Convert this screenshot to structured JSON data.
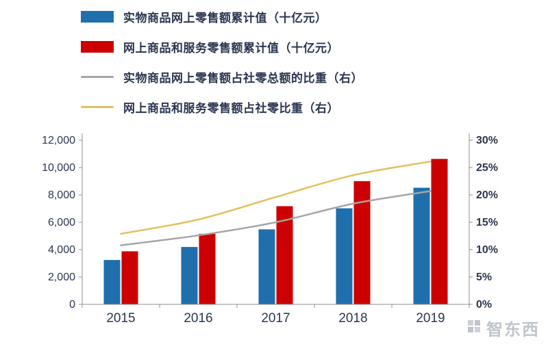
{
  "legend": {
    "items": [
      {
        "label": "实物商品网上零售额累计值（十亿元）",
        "type": "bar",
        "color": "#1F6FAD"
      },
      {
        "label": "网上商品和服务零售额累计值（十亿元）",
        "type": "bar",
        "color": "#CC0000"
      },
      {
        "label": "实物商品网上零售额占社零总额的比重（右）",
        "type": "line",
        "color": "#A5A5A5"
      },
      {
        "label": "网上商品和服务零售额占社零比重（右）",
        "type": "line",
        "color": "#E4C05C"
      }
    ]
  },
  "chart_data": {
    "type": "combo-bar-line",
    "categories": [
      "2015",
      "2016",
      "2017",
      "2018",
      "2019"
    ],
    "bar_series": [
      {
        "name": "实物商品网上零售额累计值（十亿元）",
        "color": "#1F6FAD",
        "values": [
          3242,
          4194,
          5481,
          7020,
          8524
        ],
        "axis": "left"
      },
      {
        "name": "网上商品和服务零售额累计值（十亿元）",
        "color": "#CC0000",
        "values": [
          3877,
          5156,
          7175,
          9007,
          10632
        ],
        "axis": "left"
      }
    ],
    "line_series": [
      {
        "name": "实物商品网上零售额占社零总额的比重（右）",
        "color": "#A5A5A5",
        "values": [
          10.8,
          12.6,
          15.0,
          18.4,
          20.7
        ],
        "axis": "right"
      },
      {
        "name": "网上商品和服务零售额占社零比重（右）",
        "color": "#E4C05C",
        "values": [
          12.9,
          15.5,
          19.6,
          23.6,
          26.1
        ],
        "axis": "right"
      }
    ],
    "left_axis": {
      "min": 0,
      "max": 12000,
      "tick_labels": [
        "0",
        "2,000",
        "4,000",
        "6,000",
        "8,000",
        "10,000",
        "12,000"
      ]
    },
    "right_axis": {
      "min": 0,
      "max": 30,
      "tick_labels": [
        "0%",
        "5%",
        "10%",
        "15%",
        "20%",
        "25%",
        "30%"
      ]
    },
    "grid": false,
    "legend_position": "top-left"
  },
  "watermark": {
    "text": "智东西"
  }
}
